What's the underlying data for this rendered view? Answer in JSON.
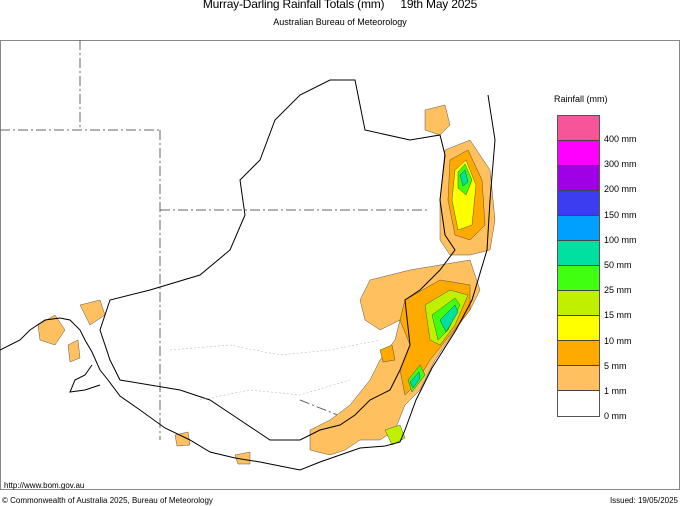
{
  "header": {
    "title": "Murray-Darling Rainfall Totals (mm)",
    "date": "19th May 2025",
    "subtitle": "Australian Bureau of Meteorology"
  },
  "legend": {
    "title": "Rainfall (mm)",
    "colors": [
      "#f7559a",
      "#ff00ff",
      "#a000e6",
      "#3c3cf0",
      "#00a0ff",
      "#00e0a0",
      "#40ff10",
      "#c0f000",
      "#ffff00",
      "#ffaa00",
      "#ffc060",
      "#ffffff"
    ],
    "labels": [
      "400 mm",
      "300 mm",
      "200 mm",
      "150 mm",
      "100 mm",
      "50 mm",
      "25 mm",
      "15 mm",
      "10 mm",
      "5 mm",
      "1 mm",
      "0 mm"
    ]
  },
  "footer": {
    "url": "http://www.bom.gov.au",
    "copyright": "© Commonwealth of Australia 2025, Bureau of Meteorology",
    "issued": "Issued: 19/05/2025"
  }
}
